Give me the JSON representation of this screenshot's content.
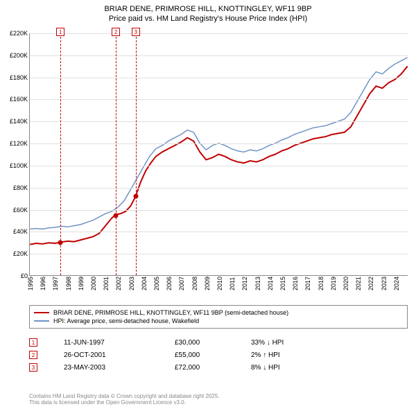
{
  "title_line1": "BRIAR DENE, PRIMROSE HILL, KNOTTINGLEY, WF11 9BP",
  "title_line2": "Price paid vs. HM Land Registry's House Price Index (HPI)",
  "chart": {
    "type": "line",
    "background_color": "#ffffff",
    "grid_color": "#e0e0e0",
    "axis_color": "#888888",
    "ylim": [
      0,
      220000
    ],
    "ytick_step": 20000,
    "ytick_labels": [
      "£0",
      "£20K",
      "£40K",
      "£60K",
      "£80K",
      "£100K",
      "£120K",
      "£140K",
      "£160K",
      "£180K",
      "£200K",
      "£220K"
    ],
    "x_start_year": 1995,
    "x_end_year": 2025,
    "x_ticks": [
      1995,
      1996,
      1997,
      1998,
      1999,
      2000,
      2001,
      2002,
      2003,
      2004,
      2005,
      2006,
      2007,
      2008,
      2009,
      2010,
      2011,
      2012,
      2013,
      2014,
      2015,
      2016,
      2017,
      2018,
      2019,
      2020,
      2021,
      2022,
      2023,
      2024
    ],
    "series": {
      "price_paid": {
        "color": "#c00000",
        "width": 2,
        "points": [
          [
            1995.0,
            28000
          ],
          [
            1995.5,
            29000
          ],
          [
            1996.0,
            28500
          ],
          [
            1996.5,
            29500
          ],
          [
            1997.0,
            29000
          ],
          [
            1997.4,
            30000
          ],
          [
            1998.0,
            31000
          ],
          [
            1998.5,
            30500
          ],
          [
            1999.0,
            32000
          ],
          [
            1999.5,
            33500
          ],
          [
            2000.0,
            35000
          ],
          [
            2000.5,
            38000
          ],
          [
            2001.0,
            45000
          ],
          [
            2001.5,
            52000
          ],
          [
            2001.8,
            55000
          ],
          [
            2002.2,
            56000
          ],
          [
            2002.6,
            58000
          ],
          [
            2003.0,
            63000
          ],
          [
            2003.4,
            72000
          ],
          [
            2003.8,
            85000
          ],
          [
            2004.2,
            95000
          ],
          [
            2004.6,
            102000
          ],
          [
            2005.0,
            108000
          ],
          [
            2005.5,
            112000
          ],
          [
            2006.0,
            115000
          ],
          [
            2006.5,
            118000
          ],
          [
            2007.0,
            121000
          ],
          [
            2007.5,
            125000
          ],
          [
            2008.0,
            122000
          ],
          [
            2008.5,
            112000
          ],
          [
            2009.0,
            105000
          ],
          [
            2009.5,
            107000
          ],
          [
            2010.0,
            110000
          ],
          [
            2010.5,
            108000
          ],
          [
            2011.0,
            105000
          ],
          [
            2011.5,
            103000
          ],
          [
            2012.0,
            102000
          ],
          [
            2012.5,
            104000
          ],
          [
            2013.0,
            103000
          ],
          [
            2013.5,
            105000
          ],
          [
            2014.0,
            108000
          ],
          [
            2014.5,
            110000
          ],
          [
            2015.0,
            113000
          ],
          [
            2015.5,
            115000
          ],
          [
            2016.0,
            118000
          ],
          [
            2016.5,
            120000
          ],
          [
            2017.0,
            122000
          ],
          [
            2017.5,
            124000
          ],
          [
            2018.0,
            125000
          ],
          [
            2018.5,
            126000
          ],
          [
            2019.0,
            128000
          ],
          [
            2019.5,
            129000
          ],
          [
            2020.0,
            130000
          ],
          [
            2020.5,
            135000
          ],
          [
            2021.0,
            145000
          ],
          [
            2021.5,
            155000
          ],
          [
            2022.0,
            165000
          ],
          [
            2022.5,
            172000
          ],
          [
            2023.0,
            170000
          ],
          [
            2023.5,
            175000
          ],
          [
            2024.0,
            178000
          ],
          [
            2024.5,
            183000
          ],
          [
            2025.0,
            190000
          ]
        ]
      },
      "hpi": {
        "color": "#6f93c5",
        "width": 1.5,
        "points": [
          [
            1995.0,
            42000
          ],
          [
            1995.5,
            42500
          ],
          [
            1996.0,
            42000
          ],
          [
            1996.5,
            43000
          ],
          [
            1997.0,
            43500
          ],
          [
            1997.5,
            44500
          ],
          [
            1998.0,
            44000
          ],
          [
            1998.5,
            45000
          ],
          [
            1999.0,
            46000
          ],
          [
            1999.5,
            48000
          ],
          [
            2000.0,
            50000
          ],
          [
            2000.5,
            53000
          ],
          [
            2001.0,
            56000
          ],
          [
            2001.5,
            58000
          ],
          [
            2002.0,
            62000
          ],
          [
            2002.5,
            68000
          ],
          [
            2003.0,
            78000
          ],
          [
            2003.5,
            88000
          ],
          [
            2004.0,
            98000
          ],
          [
            2004.5,
            108000
          ],
          [
            2005.0,
            115000
          ],
          [
            2005.5,
            118000
          ],
          [
            2006.0,
            122000
          ],
          [
            2006.5,
            125000
          ],
          [
            2007.0,
            128000
          ],
          [
            2007.5,
            132000
          ],
          [
            2008.0,
            130000
          ],
          [
            2008.5,
            120000
          ],
          [
            2009.0,
            114000
          ],
          [
            2009.5,
            118000
          ],
          [
            2010.0,
            120000
          ],
          [
            2010.5,
            118000
          ],
          [
            2011.0,
            115000
          ],
          [
            2011.5,
            113000
          ],
          [
            2012.0,
            112000
          ],
          [
            2012.5,
            114000
          ],
          [
            2013.0,
            113000
          ],
          [
            2013.5,
            115000
          ],
          [
            2014.0,
            118000
          ],
          [
            2014.5,
            120000
          ],
          [
            2015.0,
            123000
          ],
          [
            2015.5,
            125000
          ],
          [
            2016.0,
            128000
          ],
          [
            2016.5,
            130000
          ],
          [
            2017.0,
            132000
          ],
          [
            2017.5,
            134000
          ],
          [
            2018.0,
            135000
          ],
          [
            2018.5,
            136000
          ],
          [
            2019.0,
            138000
          ],
          [
            2019.5,
            140000
          ],
          [
            2020.0,
            142000
          ],
          [
            2020.5,
            148000
          ],
          [
            2021.0,
            158000
          ],
          [
            2021.5,
            168000
          ],
          [
            2022.0,
            178000
          ],
          [
            2022.5,
            185000
          ],
          [
            2023.0,
            183000
          ],
          [
            2023.5,
            188000
          ],
          [
            2024.0,
            192000
          ],
          [
            2024.5,
            195000
          ],
          [
            2025.0,
            198000
          ]
        ]
      }
    },
    "markers": [
      {
        "idx": "1",
        "year": 1997.44,
        "value": 30000,
        "color": "#c00000"
      },
      {
        "idx": "2",
        "year": 2001.82,
        "value": 55000,
        "color": "#c00000"
      },
      {
        "idx": "3",
        "year": 2003.39,
        "value": 72000,
        "color": "#c00000"
      }
    ]
  },
  "legend": [
    {
      "color": "#c00000",
      "label": "BRIAR DENE, PRIMROSE HILL, KNOTTINGLEY, WF11 9BP (semi-detached house)"
    },
    {
      "color": "#6f93c5",
      "label": "HPI: Average price, semi-detached house, Wakefield"
    }
  ],
  "transactions": [
    {
      "idx": "1",
      "date": "11-JUN-1997",
      "price": "£30,000",
      "hpi": "33% ↓ HPI",
      "color": "#c00000"
    },
    {
      "idx": "2",
      "date": "26-OCT-2001",
      "price": "£55,000",
      "hpi": "2% ↑ HPI",
      "color": "#c00000"
    },
    {
      "idx": "3",
      "date": "23-MAY-2003",
      "price": "£72,000",
      "hpi": "8% ↓ HPI",
      "color": "#c00000"
    }
  ],
  "footer_line1": "Contains HM Land Registry data © Crown copyright and database right 2025.",
  "footer_line2": "This data is licensed under the Open Government Licence v3.0."
}
